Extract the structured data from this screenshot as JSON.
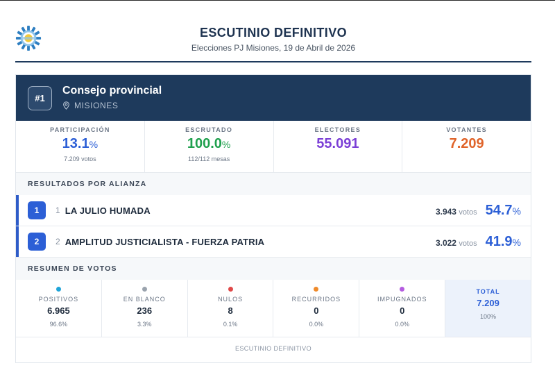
{
  "header": {
    "title": "ESCUTINIO DEFINITIVO",
    "subtitle": "Elecciones PJ Misiones, 19 de Abril de 2026"
  },
  "banner": {
    "rank": "#1",
    "title": "Consejo provincial",
    "location": "MISIONES"
  },
  "stats": [
    {
      "label": "PARTICIPACIÓN",
      "value": "13.1",
      "unit": "%",
      "sub": "7.209 votos",
      "color": "#2c5fd6"
    },
    {
      "label": "ESCRUTADO",
      "value": "100.0",
      "unit": "%",
      "sub": "112/112 mesas",
      "color": "#20a04e"
    },
    {
      "label": "ELECTORES",
      "value": "55.091",
      "unit": "",
      "sub": "",
      "color": "#7b3fd6"
    },
    {
      "label": "VOTANTES",
      "value": "7.209",
      "unit": "",
      "sub": "",
      "color": "#e0642a"
    }
  ],
  "results": {
    "heading": "RESULTADOS POR ALIANZA",
    "rows": [
      {
        "position": "1",
        "number": "1",
        "name": "LA JULIO HUMADA",
        "votes": "3.943",
        "votes_unit": "votos",
        "percent": "54.7",
        "unit": "%"
      },
      {
        "position": "2",
        "number": "2",
        "name": "AMPLITUD JUSTICIALISTA - FUERZA PATRIA",
        "votes": "3.022",
        "votes_unit": "votos",
        "percent": "41.9",
        "unit": "%"
      }
    ]
  },
  "summary": {
    "heading": "RESUMEN DE VOTOS",
    "items": [
      {
        "label": "POSITIVOS",
        "value": "6.965",
        "percent": "96.6%",
        "color": "#1fa4d8"
      },
      {
        "label": "EN BLANCO",
        "value": "236",
        "percent": "3.3%",
        "color": "#9aa3ad"
      },
      {
        "label": "NULOS",
        "value": "8",
        "percent": "0.1%",
        "color": "#e04848"
      },
      {
        "label": "RECURRIDOS",
        "value": "0",
        "percent": "0.0%",
        "color": "#ef8a2a"
      },
      {
        "label": "IMPUGNADOS",
        "value": "0",
        "percent": "0.0%",
        "color": "#b45ce0"
      }
    ],
    "total": {
      "label": "TOTAL",
      "value": "7.209",
      "percent": "100%"
    }
  },
  "footer": "ESCUTINIO DEFINITIVO"
}
